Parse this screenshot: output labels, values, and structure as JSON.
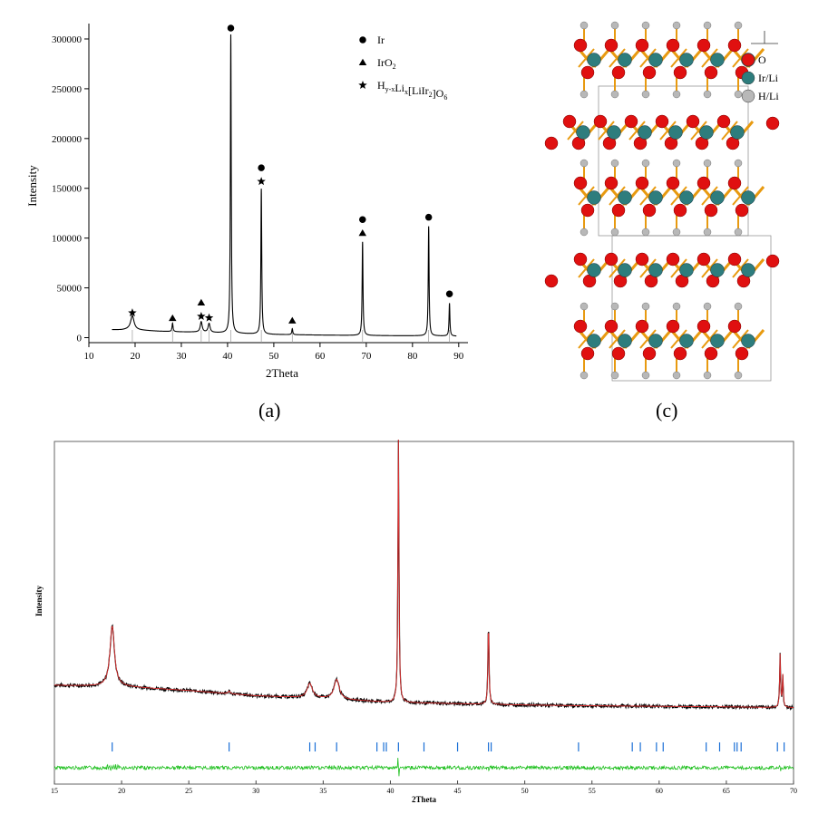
{
  "panel_a_label": "(a)",
  "panel_c_label": "(c)",
  "chart_data": [
    {
      "type": "line",
      "panel": "(a)",
      "xlabel": "2Theta",
      "ylabel": "Intensity",
      "xlim": [
        10,
        92
      ],
      "ylim": [
        -5000,
        310000
      ],
      "xticks": [
        10,
        20,
        30,
        40,
        50,
        60,
        70,
        80,
        90
      ],
      "yticks": [
        0,
        50000,
        100000,
        150000,
        200000,
        250000,
        300000
      ],
      "legend": {
        "placement": "top-right",
        "entries": [
          {
            "marker": "circle",
            "label": "Ir"
          },
          {
            "marker": "triangle",
            "label": "IrO",
            "sub": "2"
          },
          {
            "marker": "star",
            "label": "H",
            "sub": "y-x",
            "label2": "Li",
            "sub2": "x",
            "label3": "[LiIr",
            "sub3": "2",
            "label4": "]O",
            "sub4": "6"
          }
        ]
      },
      "baseline": [
        [
          15,
          8000
        ],
        [
          17,
          7800
        ],
        [
          18.5,
          8200
        ],
        [
          25,
          6500
        ],
        [
          30,
          5800
        ],
        [
          33,
          5600
        ],
        [
          37,
          5000
        ],
        [
          40,
          4500
        ],
        [
          45,
          3800
        ],
        [
          50,
          3200
        ],
        [
          55,
          2900
        ],
        [
          60,
          2600
        ],
        [
          65,
          2400
        ],
        [
          70,
          2200
        ],
        [
          75,
          2000
        ],
        [
          80,
          1900
        ],
        [
          85,
          1800
        ],
        [
          88,
          1600
        ],
        [
          89.5,
          1500
        ]
      ],
      "peaks": [
        {
          "x": 19.4,
          "y": 14000,
          "w": 0.9,
          "markers": [
            "star"
          ]
        },
        {
          "x": 28.1,
          "y": 8500,
          "w": 0.25,
          "markers": [
            "triangle"
          ]
        },
        {
          "x": 34.3,
          "y": 10500,
          "w": 0.5,
          "markers": [
            "triangle",
            "star"
          ]
        },
        {
          "x": 36.0,
          "y": 9000,
          "w": 0.5,
          "markers": [
            "star"
          ]
        },
        {
          "x": 40.7,
          "y": 300000,
          "w": 0.22,
          "markers": [
            "circle"
          ]
        },
        {
          "x": 47.3,
          "y": 146000,
          "w": 0.22,
          "markers": [
            "circle",
            "star"
          ]
        },
        {
          "x": 54.0,
          "y": 6000,
          "w": 0.25,
          "markers": [
            "triangle"
          ]
        },
        {
          "x": 69.2,
          "y": 94000,
          "w": 0.22,
          "markers": [
            "circle",
            "triangle"
          ]
        },
        {
          "x": 83.5,
          "y": 110000,
          "w": 0.22,
          "markers": [
            "circle"
          ]
        },
        {
          "x": 88.0,
          "y": 33000,
          "w": 0.22,
          "markers": [
            "circle"
          ]
        }
      ],
      "reference_lines": [
        19.4,
        28.1,
        34.3,
        36.0,
        40.7,
        47.3,
        54.0,
        69.2,
        83.5,
        88.0
      ]
    },
    {
      "type": "line",
      "xlabel": "2Theta",
      "ylabel": "Intensity",
      "xlim": [
        15,
        70
      ],
      "xticks": [
        15,
        20,
        25,
        30,
        35,
        40,
        45,
        50,
        55,
        60,
        65,
        70
      ],
      "colors": {
        "observed": "#000000",
        "calculated": "#e03030",
        "difference": "#20c020",
        "reflections": "#1a6fd6"
      },
      "background": [
        [
          15,
          0.1
        ],
        [
          20,
          0.095
        ],
        [
          25,
          0.08
        ],
        [
          30,
          0.06
        ],
        [
          35,
          0.05
        ],
        [
          40,
          0.035
        ],
        [
          45,
          0.03
        ],
        [
          50,
          0.025
        ],
        [
          55,
          0.022
        ],
        [
          60,
          0.02
        ],
        [
          65,
          0.018
        ],
        [
          70,
          0.015
        ]
      ],
      "peaks": [
        {
          "x": 19.3,
          "h": 0.23,
          "w": 0.35
        },
        {
          "x": 28.0,
          "h": 0.01,
          "w": 0.15
        },
        {
          "x": 34.0,
          "h": 0.055,
          "w": 0.4
        },
        {
          "x": 36.0,
          "h": 0.075,
          "w": 0.4
        },
        {
          "x": 40.6,
          "h": 1.0,
          "w": 0.08
        },
        {
          "x": 47.3,
          "h": 0.32,
          "w": 0.08
        },
        {
          "x": 69.0,
          "h": 0.2,
          "w": 0.07
        },
        {
          "x": 69.2,
          "h": 0.12,
          "w": 0.07
        }
      ],
      "reflections": [
        19.3,
        28.0,
        34.0,
        34.4,
        36.0,
        39.0,
        39.5,
        39.7,
        40.6,
        42.5,
        45.0,
        47.3,
        47.5,
        54.0,
        58.0,
        58.6,
        59.8,
        60.3,
        63.5,
        64.5,
        65.6,
        65.8,
        66.1,
        68.8,
        69.3
      ]
    }
  ],
  "structure": {
    "legend": [
      {
        "label": "O",
        "color": "#e01010"
      },
      {
        "label": "Ir/Li",
        "color": "#2e7d7d"
      },
      {
        "label": "H/Li",
        "color": "#b8b8b8"
      }
    ],
    "bond_color": "#e89a10"
  }
}
